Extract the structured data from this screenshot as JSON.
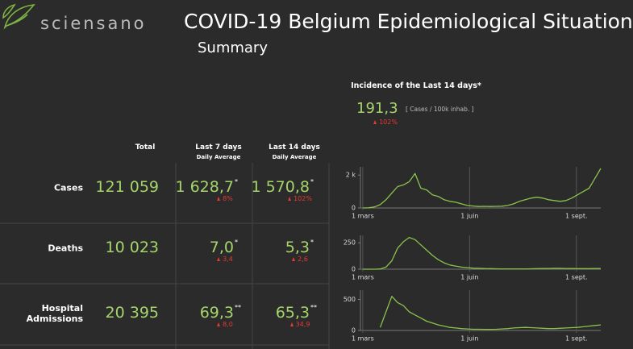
{
  "header": {
    "logo": "sciensano",
    "title": "COVID-19 Belgium Epidemiological Situation",
    "subtitle": "Summary"
  },
  "incidence": {
    "title": "Incidence of the Last 14 days*",
    "value": "191,3",
    "unit": "[ Cases / 100k inhab. ]",
    "change": "102%"
  },
  "table": {
    "columns": [
      {
        "title": "Total"
      },
      {
        "title": "Last 7 days",
        "subtitle": "Daily Average"
      },
      {
        "title": "Last 14 days",
        "subtitle": "Daily Average"
      }
    ],
    "rows": [
      {
        "label": "Cases",
        "total": "121 059",
        "avg7": "1 628,7",
        "avg7_note": "*",
        "change7": "8%",
        "avg14": "1 570,8",
        "avg14_note": "*",
        "change14": "102%"
      },
      {
        "label": "Deaths",
        "total": "10 023",
        "avg7": "7,0",
        "avg7_note": "*",
        "change7": "3,4",
        "avg14": "5,3",
        "avg14_note": "*",
        "change14": "2,6"
      },
      {
        "label": "Hospital Admissions",
        "total": "20 395",
        "avg7": "69,3",
        "avg7_note": "**",
        "change7": "8,0",
        "avg14": "65,3",
        "avg14_note": "**",
        "change14": "34,9"
      }
    ]
  },
  "chart_data": [
    {
      "type": "line",
      "color": "#8bc34a",
      "x": [
        0,
        5,
        10,
        15,
        20,
        25,
        30,
        35,
        40,
        45,
        50,
        55,
        60,
        65,
        70,
        75,
        80,
        85,
        90,
        95,
        100,
        105,
        110,
        115,
        120,
        125,
        130,
        135,
        140,
        145,
        150,
        155,
        160,
        165,
        170,
        175,
        180,
        185,
        190,
        195,
        200,
        205
      ],
      "values": [
        2,
        10,
        60,
        200,
        500,
        900,
        1300,
        1400,
        1600,
        2100,
        1200,
        1100,
        800,
        700,
        500,
        400,
        350,
        250,
        150,
        120,
        90,
        100,
        90,
        100,
        110,
        150,
        250,
        400,
        500,
        600,
        650,
        600,
        500,
        450,
        400,
        450,
        600,
        800,
        1000,
        1200,
        1800,
        2400
      ],
      "xlim": [
        -2,
        205
      ],
      "xticks": [
        {
          "value": 0,
          "label": "1 mars"
        },
        {
          "value": 92,
          "label": "1 juin"
        },
        {
          "value": 184,
          "label": "1 sept."
        }
      ],
      "ylim": [
        0,
        2500
      ],
      "yticks": [
        0,
        {
          "value": 2000,
          "label": "2 k"
        }
      ]
    },
    {
      "type": "line",
      "color": "#8bc34a",
      "x": [
        0,
        5,
        10,
        15,
        20,
        25,
        30,
        35,
        40,
        45,
        50,
        55,
        60,
        65,
        70,
        75,
        80,
        85,
        90,
        95,
        100,
        105,
        110,
        115,
        120,
        125,
        130,
        135,
        140,
        145,
        150,
        155,
        160,
        165,
        170,
        175,
        180,
        185,
        190,
        195,
        200,
        205
      ],
      "values": [
        0,
        0,
        0,
        2,
        20,
        80,
        200,
        260,
        300,
        280,
        230,
        180,
        130,
        90,
        60,
        40,
        30,
        20,
        15,
        10,
        8,
        6,
        5,
        4,
        3,
        3,
        3,
        3,
        3,
        4,
        5,
        6,
        7,
        8,
        8,
        7,
        6,
        5,
        5,
        5,
        6,
        7
      ],
      "xlim": [
        -2,
        205
      ],
      "xticks": [
        {
          "value": 0,
          "label": "1 mars"
        },
        {
          "value": 92,
          "label": "1 juin"
        },
        {
          "value": 184,
          "label": "1 sept."
        }
      ],
      "ylim": [
        0,
        320
      ],
      "yticks": [
        0,
        250
      ]
    },
    {
      "type": "line",
      "color": "#8bc34a",
      "x": [
        0,
        5,
        10,
        15,
        20,
        25,
        30,
        35,
        40,
        45,
        50,
        55,
        60,
        65,
        70,
        75,
        80,
        85,
        90,
        95,
        100,
        105,
        110,
        115,
        120,
        125,
        130,
        135,
        140,
        145,
        150,
        155,
        160,
        165,
        170,
        175,
        180,
        185,
        190,
        195,
        200,
        205
      ],
      "values": [
        null,
        null,
        null,
        50,
        300,
        550,
        450,
        400,
        300,
        250,
        200,
        150,
        120,
        90,
        70,
        50,
        40,
        30,
        25,
        20,
        20,
        18,
        18,
        20,
        25,
        30,
        40,
        45,
        50,
        45,
        40,
        35,
        30,
        30,
        35,
        40,
        45,
        50,
        60,
        70,
        80,
        90
      ],
      "xlim": [
        -2,
        205
      ],
      "xticks": [
        {
          "value": 0,
          "label": "1 mars"
        },
        {
          "value": 92,
          "label": "1 juin"
        },
        {
          "value": 184,
          "label": "1 sept."
        }
      ],
      "ylim": [
        0,
        650
      ],
      "yticks": [
        0,
        500
      ]
    }
  ]
}
